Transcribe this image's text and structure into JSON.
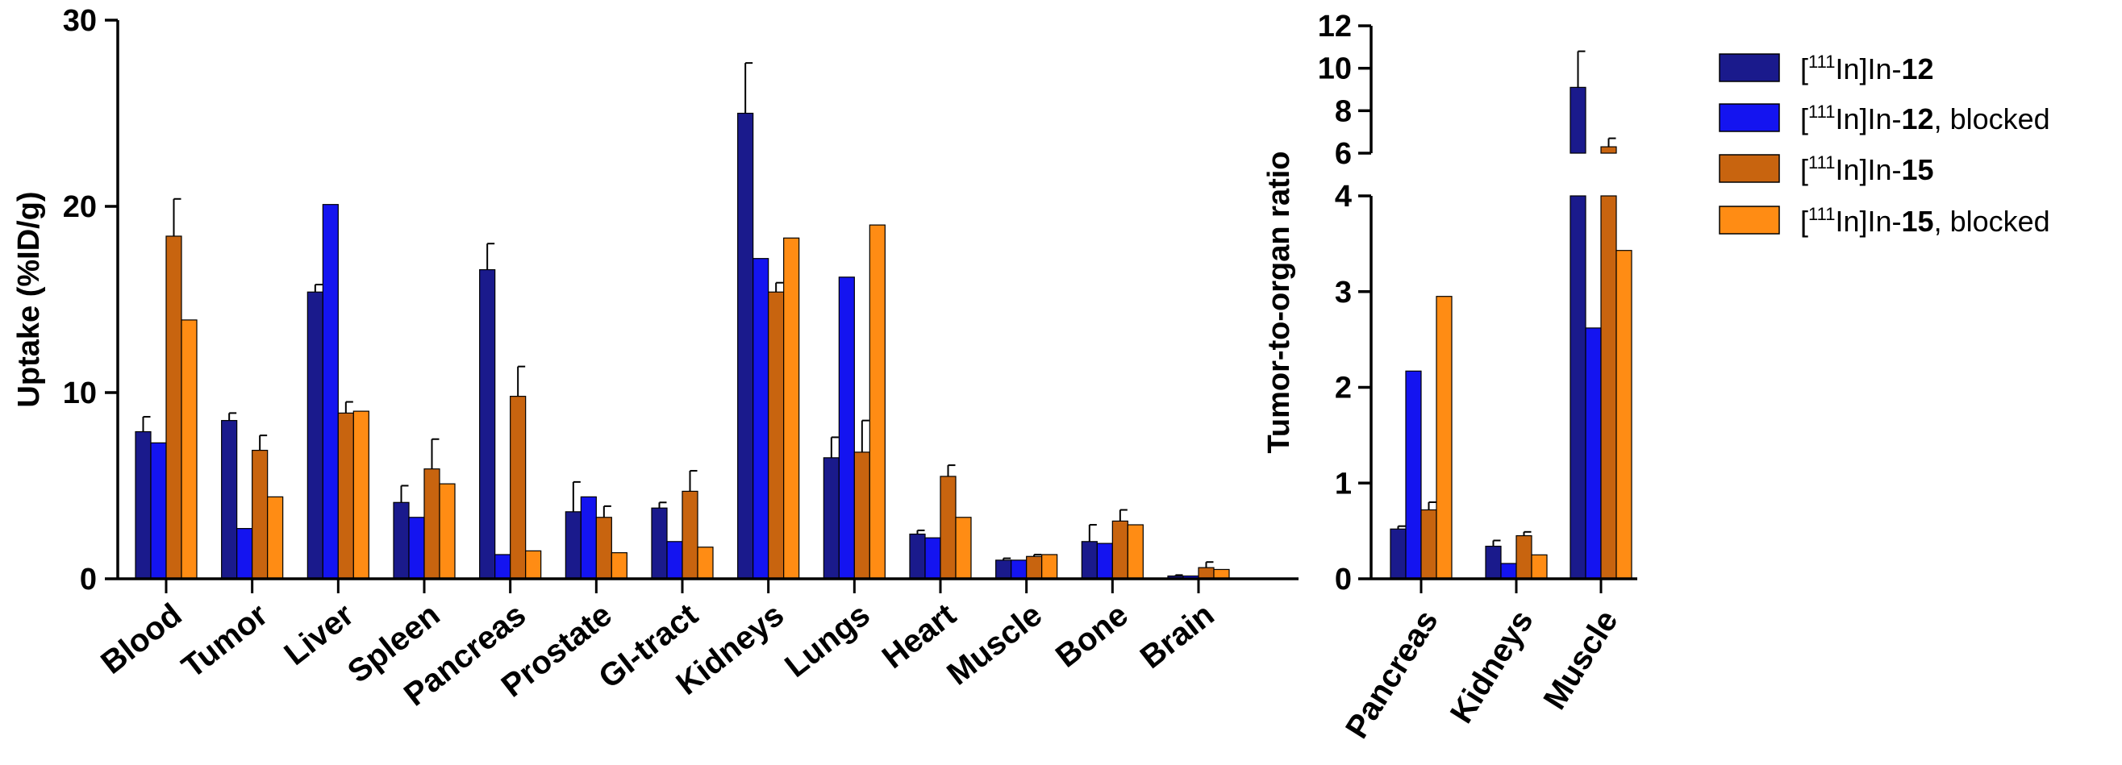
{
  "colors": {
    "series": [
      "#1a1a8c",
      "#1414f0",
      "#c8640f",
      "#ff8c14"
    ],
    "axis": "#000000"
  },
  "legend": {
    "entries": [
      {
        "pre": "[",
        "sup": "111",
        "mid": "In]In-",
        "bold": "12",
        "post": ""
      },
      {
        "pre": "[",
        "sup": "111",
        "mid": "In]In-",
        "bold": "12",
        "post": ", blocked"
      },
      {
        "pre": "[",
        "sup": "111",
        "mid": "In]In-",
        "bold": "15",
        "post": ""
      },
      {
        "pre": "[",
        "sup": "111",
        "mid": "In]In-",
        "bold": "15",
        "post": ", blocked"
      }
    ]
  },
  "chart_data": [
    {
      "type": "bar",
      "title": "",
      "xlabel": "",
      "ylabel": "Uptake (%ID/g)",
      "ylim": [
        0,
        30
      ],
      "yticks": [
        0,
        10,
        20,
        30
      ],
      "categories": [
        "Blood",
        "Tumor",
        "Liver",
        "Spleen",
        "Pancreas",
        "Prostate",
        "GI-tract",
        "Kidneys",
        "Lungs",
        "Heart",
        "Muscle",
        "Bone",
        "Brain"
      ],
      "series": [
        {
          "name": "[111In]In-12",
          "values": [
            7.9,
            8.5,
            15.4,
            4.1,
            16.6,
            3.6,
            3.8,
            25.0,
            6.5,
            2.4,
            1.0,
            2.0,
            0.15
          ],
          "errors": [
            0.8,
            0.4,
            0.4,
            0.9,
            1.4,
            1.6,
            0.3,
            2.7,
            1.1,
            0.2,
            0.1,
            0.9,
            0.05
          ]
        },
        {
          "name": "[111In]In-12, blocked",
          "values": [
            7.3,
            2.7,
            20.1,
            3.3,
            1.3,
            4.4,
            2.0,
            17.2,
            16.2,
            2.2,
            1.0,
            1.9,
            0.15
          ],
          "errors": [
            0,
            0,
            0,
            0,
            0,
            0,
            0,
            0,
            0,
            0,
            0,
            0,
            0
          ]
        },
        {
          "name": "[111In]In-15",
          "values": [
            18.4,
            6.9,
            8.9,
            5.9,
            9.8,
            3.3,
            4.7,
            15.4,
            6.8,
            5.5,
            1.2,
            3.1,
            0.6
          ],
          "errors": [
            2.0,
            0.8,
            0.6,
            1.6,
            1.6,
            0.6,
            1.1,
            0.5,
            1.7,
            0.6,
            0.1,
            0.6,
            0.3
          ]
        },
        {
          "name": "[111In]In-15, blocked",
          "values": [
            13.9,
            4.4,
            9.0,
            5.1,
            1.5,
            1.4,
            1.7,
            18.3,
            19.0,
            3.3,
            1.3,
            2.9,
            0.5
          ],
          "errors": [
            0,
            0,
            0,
            0,
            0,
            0,
            0,
            0,
            0,
            0,
            0,
            0,
            0
          ]
        }
      ]
    },
    {
      "type": "bar",
      "title": "",
      "xlabel": "",
      "ylabel": "Tumor-to-organ ratio",
      "ylim": [
        0,
        12
      ],
      "axis_break": {
        "lower": [
          0,
          4
        ],
        "upper": [
          6,
          12
        ]
      },
      "yticks_lower": [
        0,
        1,
        2,
        3,
        4
      ],
      "yticks_upper": [
        6,
        8,
        10,
        12
      ],
      "categories": [
        "Pancreas",
        "Kidneys",
        "Muscle"
      ],
      "series": [
        {
          "name": "[111In]In-12",
          "values": [
            0.52,
            0.34,
            9.1
          ],
          "errors": [
            0.03,
            0.06,
            1.7
          ]
        },
        {
          "name": "[111In]In-12, blocked",
          "values": [
            2.17,
            0.16,
            2.62
          ],
          "errors": [
            0,
            0,
            0
          ]
        },
        {
          "name": "[111In]In-15",
          "values": [
            0.72,
            0.45,
            6.3
          ],
          "errors": [
            0.08,
            0.04,
            0.4
          ]
        },
        {
          "name": "[111In]In-15, blocked",
          "values": [
            2.95,
            0.25,
            3.43
          ],
          "errors": [
            0,
            0,
            0
          ]
        }
      ]
    }
  ]
}
